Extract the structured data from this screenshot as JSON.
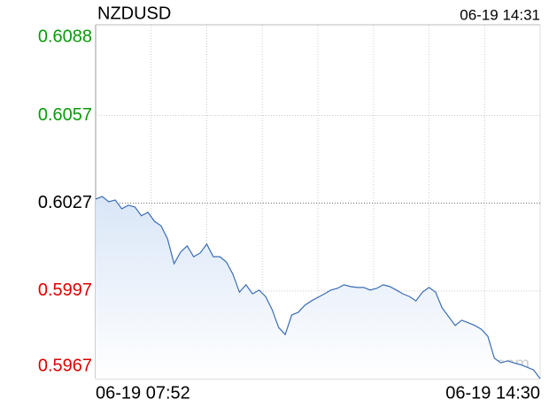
{
  "chart_data": {
    "type": "line",
    "title": "NZDUSD",
    "timestamp": "06-19 14:31",
    "watermark": "sina.com",
    "categories": [
      "06-19 07:52",
      null,
      null,
      null,
      null,
      null,
      null,
      null,
      null,
      null,
      null,
      null,
      null,
      null,
      null,
      null,
      null,
      null,
      null,
      null,
      null,
      null,
      null,
      null,
      null,
      null,
      null,
      null,
      null,
      null,
      null,
      null,
      null,
      null,
      null,
      null,
      null,
      null,
      null,
      null,
      null,
      null,
      null,
      null,
      null,
      null,
      null,
      null,
      null,
      null,
      null,
      null,
      null,
      null,
      null,
      null,
      null,
      null,
      null,
      null,
      null,
      null,
      null,
      null,
      null,
      null,
      null,
      null,
      "06-19 14:30"
    ],
    "series": [
      {
        "name": "NZDUSD",
        "color": "#3a6cb4",
        "values": [
          0.60284,
          0.60293,
          0.60275,
          0.60281,
          0.60251,
          0.60263,
          0.60257,
          0.60227,
          0.60239,
          0.60208,
          0.60193,
          0.60148,
          0.60063,
          0.60103,
          0.60124,
          0.60087,
          0.601,
          0.6013,
          0.60087,
          0.60087,
          0.60069,
          0.60027,
          0.59966,
          0.59991,
          0.5996,
          0.59973,
          0.59951,
          0.59906,
          0.59845,
          0.59821,
          0.59888,
          0.59897,
          0.59921,
          0.59936,
          0.59948,
          0.5996,
          0.59973,
          0.59979,
          0.59991,
          0.59985,
          0.59982,
          0.59982,
          0.59973,
          0.59979,
          0.59991,
          0.59985,
          0.59973,
          0.5996,
          0.59951,
          0.59936,
          0.59966,
          0.59982,
          0.59966,
          0.59912,
          0.59882,
          0.59852,
          0.5987,
          0.59861,
          0.59852,
          0.59839,
          0.59815,
          0.5974,
          0.59724,
          0.59731,
          0.59724,
          0.59718,
          0.59709,
          0.597,
          0.5967
        ]
      }
    ],
    "ylim": [
      0.5967,
      0.6088
    ],
    "yticks": [
      0.6088,
      0.6057,
      0.6027,
      0.5997,
      0.5967
    ],
    "base_value": 0.6027,
    "up_color": "#0a9a0a",
    "down_color": "#e00000",
    "base_color": "#000000",
    "grid": true
  }
}
